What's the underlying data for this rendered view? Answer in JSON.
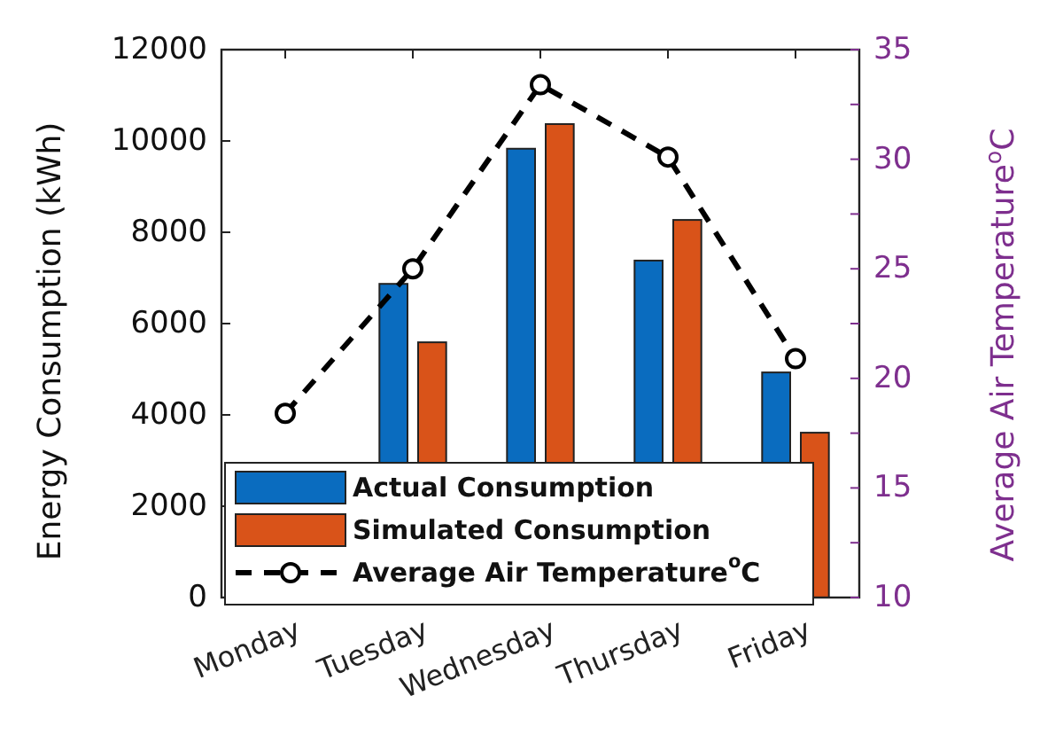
{
  "chart_data": {
    "type": "bar",
    "ylabel": "Energy Consumption (kWh)",
    "y2label": "Average Air Temperature$^{o}$C",
    "categories": [
      "Monday",
      "Tuesday",
      "Wednesday",
      "Thursday",
      "Friday"
    ],
    "series": [
      {
        "name": "Actual Consumption",
        "color": "#0a6cbf",
        "values": [
          null,
          6870,
          9830,
          7380,
          4930
        ]
      },
      {
        "name": "Simulated Consumption",
        "color": "#d95319",
        "values": [
          null,
          5590,
          10370,
          8270,
          3610
        ]
      },
      {
        "name": "Average Air Temperature$^{o}$C",
        "type": "line",
        "axis": "y2",
        "color": "#000000",
        "marker": "circle",
        "line_style": "dashed",
        "values": [
          18.4,
          25.0,
          33.4,
          30.1,
          20.9
        ]
      }
    ],
    "ylim": [
      0,
      12000
    ],
    "yticks": [
      0,
      2000,
      4000,
      6000,
      8000,
      10000,
      12000
    ],
    "y2lim": [
      10,
      35
    ],
    "y2ticks": [
      10,
      {
        "value": 12.5,
        "label": null
      },
      15,
      {
        "value": 17.5,
        "label": null
      },
      20,
      {
        "value": 22.5,
        "label": null
      },
      25,
      {
        "value": 27.5,
        "label": null
      },
      30,
      {
        "value": 32.5,
        "label": null
      },
      35
    ],
    "legend": "bottom left",
    "grid": false
  }
}
